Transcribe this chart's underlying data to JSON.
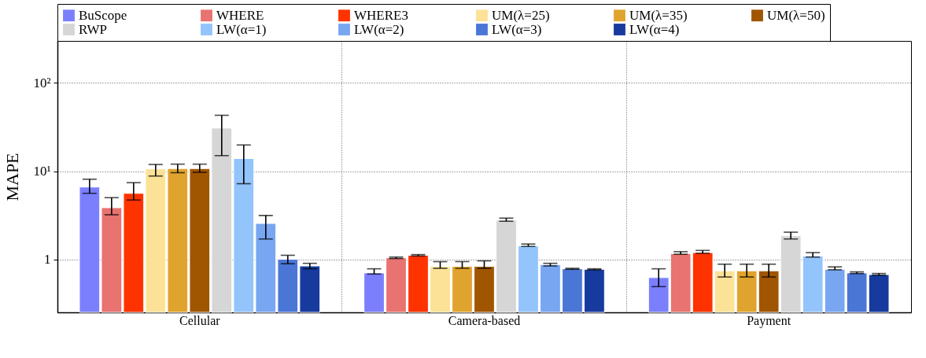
{
  "chart_data": {
    "type": "bar",
    "ylabel": "MAPE",
    "categories": [
      "Cellular",
      "Camera-based",
      "Payment"
    ],
    "series": [
      {
        "name": "BuScope",
        "color": "#7b7ffe",
        "values": [
          6.6,
          0.7,
          0.62
        ],
        "errors": [
          [
            5.6,
            8.1
          ],
          [
            0.68,
            0.78
          ],
          [
            0.49,
            0.78
          ]
        ]
      },
      {
        "name": "WHERE",
        "color": "#e87370",
        "values": [
          3.85,
          1.04,
          1.16
        ],
        "errors": [
          [
            3.2,
            5.0
          ],
          [
            1.02,
            1.06
          ],
          [
            1.14,
            1.22
          ]
        ]
      },
      {
        "name": "WHERE3",
        "color": "#ff3300",
        "values": [
          5.6,
          1.11,
          1.19
        ],
        "errors": [
          [
            4.7,
            7.4
          ],
          [
            1.09,
            1.13
          ],
          [
            1.17,
            1.26
          ]
        ]
      },
      {
        "name": "UM(λ=25)",
        "color": "#fce296",
        "values": [
          10.6,
          0.83,
          0.74
        ],
        "errors": [
          [
            8.8,
            11.9
          ],
          [
            0.79,
            0.94
          ],
          [
            0.63,
            0.88
          ]
        ]
      },
      {
        "name": "UM(λ=35)",
        "color": "#e0a42e",
        "values": [
          10.7,
          0.83,
          0.74
        ],
        "errors": [
          [
            9.6,
            12
          ],
          [
            0.79,
            0.94
          ],
          [
            0.63,
            0.88
          ]
        ]
      },
      {
        "name": "UM(λ=50)",
        "color": "#a05500",
        "values": [
          10.7,
          0.83,
          0.74
        ],
        "errors": [
          [
            9.7,
            12
          ],
          [
            0.79,
            0.96
          ],
          [
            0.63,
            0.88
          ]
        ]
      },
      {
        "name": "RWP",
        "color": "#d6d6d6",
        "values": [
          30.8,
          2.78,
          1.85
        ],
        "errors": [
          [
            15,
            43
          ],
          [
            2.7,
            2.93
          ],
          [
            1.7,
            2.03
          ]
        ]
      },
      {
        "name": "LW(α=1)",
        "color": "#93c4fb",
        "values": [
          13.9,
          1.42,
          1.09
        ],
        "errors": [
          [
            7.2,
            19.8
          ],
          [
            1.4,
            1.49
          ],
          [
            1.06,
            1.19
          ]
        ]
      },
      {
        "name": "LW(α=2)",
        "color": "#78a6f0",
        "values": [
          2.55,
          0.87,
          0.77
        ],
        "errors": [
          [
            1.7,
            3.14
          ],
          [
            0.84,
            0.9
          ],
          [
            0.76,
            0.82
          ]
        ]
      },
      {
        "name": "LW(α=3)",
        "color": "#4a76d6",
        "values": [
          1.0,
          0.78,
          0.7
        ],
        "errors": [
          [
            0.89,
            1.11
          ],
          [
            0.77,
            0.79
          ],
          [
            0.69,
            0.72
          ]
        ]
      },
      {
        "name": "LW(α=4)",
        "color": "#163a9e",
        "values": [
          0.84,
          0.77,
          0.67
        ],
        "errors": [
          [
            0.78,
            0.9
          ],
          [
            0.76,
            0.78
          ],
          [
            0.66,
            0.69
          ]
        ]
      }
    ],
    "log": true,
    "ylim": [
      0.25,
      300
    ],
    "yticks": [
      1,
      {
        "value": 10,
        "label": "10¹"
      },
      {
        "value": 100,
        "label": "10²"
      }
    ],
    "grid": true,
    "legend": "top"
  }
}
